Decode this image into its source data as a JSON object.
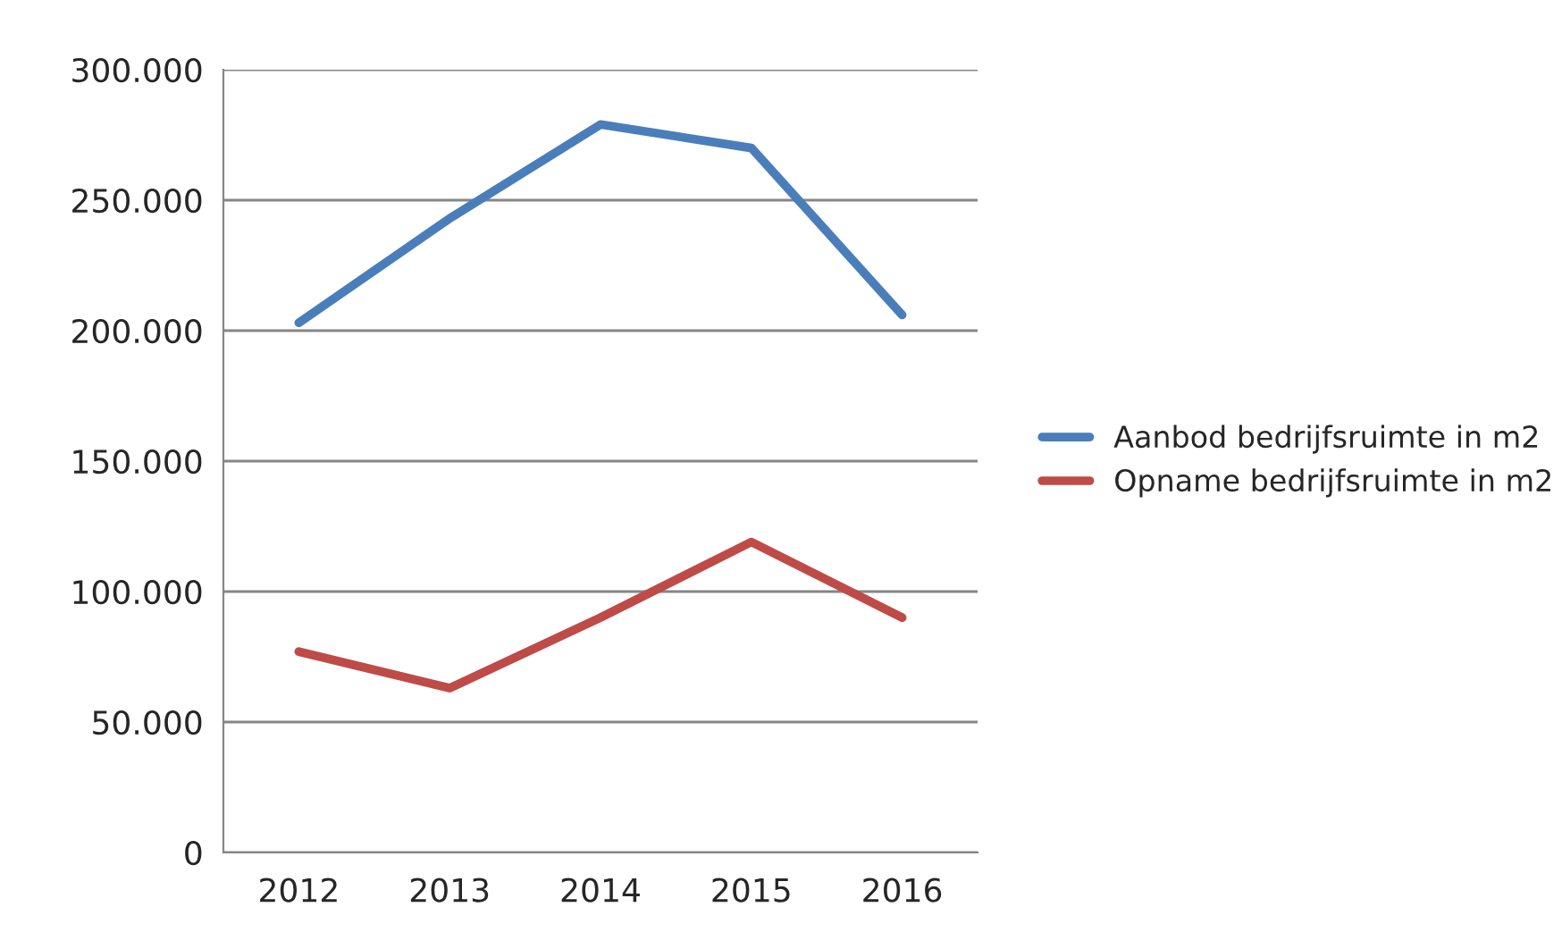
{
  "chart_data": {
    "type": "line",
    "categories": [
      "2012",
      "2013",
      "2014",
      "2015",
      "2016"
    ],
    "series": [
      {
        "name": "Aanbod bedrijfsruimte in m2",
        "color": "#4a7ebb",
        "values": [
          203000,
          243000,
          279000,
          270000,
          206000
        ]
      },
      {
        "name": "Opname bedrijfsruimte in m2",
        "color": "#be4b48",
        "values": [
          77000,
          63000,
          90000,
          119000,
          90000
        ]
      }
    ],
    "ylim": [
      0,
      300000
    ],
    "yticks": [
      0,
      {
        "value": 50000,
        "label": "50.000"
      },
      {
        "value": 100000,
        "label": "100.000"
      },
      {
        "value": 150000,
        "label": "150.000"
      },
      {
        "value": 200000,
        "label": "200.000"
      },
      {
        "value": 250000,
        "label": "250.000"
      },
      {
        "value": 300000,
        "label": "300.000"
      }
    ],
    "grid": "y",
    "legend": "right",
    "marker": "none",
    "line_style": "solid"
  }
}
